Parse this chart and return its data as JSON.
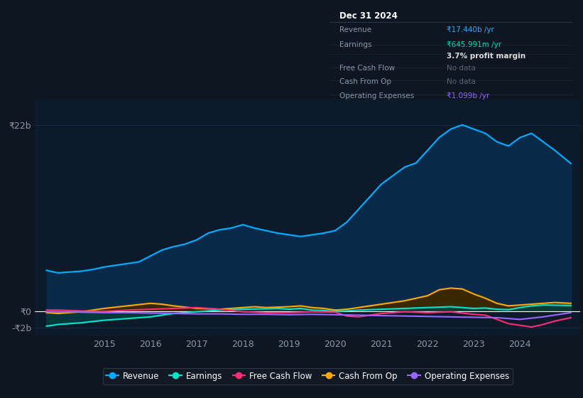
{
  "background_color": "#0e1621",
  "plot_bg_color": "#0d1a2a",
  "grid_color": "#1e3050",
  "zero_line_color": "#ffffff",
  "y_label_22b": "₹22b",
  "y_label_0": "₹0",
  "y_label_neg2b": "-₹2b",
  "ylim": [
    -3000000000,
    25000000000
  ],
  "xlim": [
    2013.5,
    2025.3
  ],
  "revenue": {
    "x": [
      2013.75,
      2014.0,
      2014.25,
      2014.5,
      2014.75,
      2015.0,
      2015.25,
      2015.5,
      2015.75,
      2016.0,
      2016.25,
      2016.5,
      2016.75,
      2017.0,
      2017.25,
      2017.5,
      2017.75,
      2018.0,
      2018.25,
      2018.5,
      2018.75,
      2019.0,
      2019.25,
      2019.5,
      2019.75,
      2020.0,
      2020.25,
      2020.5,
      2020.75,
      2021.0,
      2021.25,
      2021.5,
      2021.75,
      2022.0,
      2022.25,
      2022.5,
      2022.75,
      2023.0,
      2023.25,
      2023.5,
      2023.75,
      2024.0,
      2024.25,
      2024.5,
      2024.75,
      2025.1
    ],
    "y": [
      4800000000,
      4500000000,
      4600000000,
      4700000000,
      4900000000,
      5200000000,
      5400000000,
      5600000000,
      5800000000,
      6500000000,
      7200000000,
      7600000000,
      7900000000,
      8400000000,
      9200000000,
      9600000000,
      9800000000,
      10200000000,
      9800000000,
      9500000000,
      9200000000,
      9000000000,
      8800000000,
      9000000000,
      9200000000,
      9500000000,
      10500000000,
      12000000000,
      13500000000,
      15000000000,
      16000000000,
      17000000000,
      17500000000,
      19000000000,
      20500000000,
      21500000000,
      22000000000,
      21500000000,
      21000000000,
      20000000000,
      19500000000,
      20500000000,
      21000000000,
      20000000000,
      19000000000,
      17440000000
    ],
    "color": "#00aaff",
    "fill_color": "#0a2a4a"
  },
  "earnings": {
    "x": [
      2013.75,
      2014.0,
      2014.5,
      2015.0,
      2015.5,
      2016.0,
      2016.5,
      2017.0,
      2017.25,
      2017.5,
      2018.0,
      2018.5,
      2018.75,
      2019.0,
      2019.25,
      2019.5,
      2019.75,
      2020.0,
      2020.25,
      2020.5,
      2021.0,
      2021.5,
      2022.0,
      2022.5,
      2023.0,
      2023.25,
      2023.5,
      2023.75,
      2024.0,
      2024.25,
      2024.5,
      2025.1
    ],
    "y": [
      -1800000000,
      -1600000000,
      -1400000000,
      -1100000000,
      -900000000,
      -700000000,
      -300000000,
      -100000000,
      0,
      100000000,
      200000000,
      250000000,
      300000000,
      200000000,
      300000000,
      100000000,
      50000000,
      -50000000,
      0,
      100000000,
      200000000,
      300000000,
      400000000,
      500000000,
      300000000,
      350000000,
      200000000,
      150000000,
      400000000,
      600000000,
      700000000,
      645991000
    ],
    "color": "#00e5cc",
    "fill_color": "#004040"
  },
  "free_cash_flow": {
    "x": [
      2013.75,
      2014.0,
      2014.5,
      2015.0,
      2015.5,
      2016.0,
      2016.5,
      2017.0,
      2017.5,
      2018.0,
      2018.5,
      2019.0,
      2019.5,
      2020.0,
      2020.25,
      2020.5,
      2020.75,
      2021.0,
      2021.5,
      2022.0,
      2022.5,
      2023.0,
      2023.25,
      2023.5,
      2023.75,
      2024.0,
      2024.25,
      2024.5,
      2024.75,
      2025.1
    ],
    "y": [
      100000000,
      100000000,
      0,
      -50000000,
      100000000,
      200000000,
      300000000,
      400000000,
      200000000,
      -100000000,
      -200000000,
      -200000000,
      -100000000,
      -150000000,
      -600000000,
      -700000000,
      -500000000,
      -300000000,
      -100000000,
      -200000000,
      -100000000,
      -400000000,
      -500000000,
      -1000000000,
      -1500000000,
      -1700000000,
      -1900000000,
      -1600000000,
      -1200000000,
      -800000000
    ],
    "color": "#ff2d78"
  },
  "cash_from_op": {
    "x": [
      2013.75,
      2014.0,
      2014.5,
      2015.0,
      2015.5,
      2016.0,
      2016.25,
      2016.5,
      2017.0,
      2017.5,
      2018.0,
      2018.25,
      2018.5,
      2019.0,
      2019.25,
      2019.5,
      2019.75,
      2020.0,
      2020.25,
      2020.5,
      2021.0,
      2021.25,
      2021.5,
      2022.0,
      2022.25,
      2022.5,
      2022.75,
      2023.0,
      2023.25,
      2023.5,
      2023.75,
      2024.0,
      2024.25,
      2024.5,
      2024.75,
      2025.1
    ],
    "y": [
      -200000000,
      -300000000,
      -100000000,
      300000000,
      600000000,
      900000000,
      800000000,
      600000000,
      300000000,
      200000000,
      400000000,
      500000000,
      400000000,
      500000000,
      600000000,
      400000000,
      300000000,
      100000000,
      200000000,
      400000000,
      800000000,
      1000000000,
      1200000000,
      1800000000,
      2500000000,
      2700000000,
      2600000000,
      2000000000,
      1500000000,
      900000000,
      600000000,
      700000000,
      800000000,
      900000000,
      1000000000,
      900000000
    ],
    "color": "#ffaa00",
    "fill_color": "#3a2800"
  },
  "operating_expenses": {
    "x": [
      2013.75,
      2014.0,
      2014.5,
      2015.0,
      2015.5,
      2016.0,
      2016.5,
      2017.0,
      2017.5,
      2018.0,
      2018.5,
      2019.0,
      2019.5,
      2020.0,
      2020.5,
      2021.0,
      2021.5,
      2022.0,
      2022.5,
      2023.0,
      2023.5,
      2024.0,
      2024.5,
      2025.1
    ],
    "y": [
      -100000000,
      -100000000,
      -150000000,
      -200000000,
      -200000000,
      -250000000,
      -300000000,
      -350000000,
      -350000000,
      -400000000,
      -400000000,
      -450000000,
      -400000000,
      -450000000,
      -500000000,
      -550000000,
      -600000000,
      -650000000,
      -700000000,
      -750000000,
      -800000000,
      -1000000000,
      -700000000,
      -200000000
    ],
    "color": "#9966ff"
  },
  "legend": [
    {
      "label": "Revenue",
      "color": "#00aaff"
    },
    {
      "label": "Earnings",
      "color": "#00e5cc"
    },
    {
      "label": "Free Cash Flow",
      "color": "#ff2d78"
    },
    {
      "label": "Cash From Op",
      "color": "#ffaa00"
    },
    {
      "label": "Operating Expenses",
      "color": "#9966ff"
    }
  ]
}
